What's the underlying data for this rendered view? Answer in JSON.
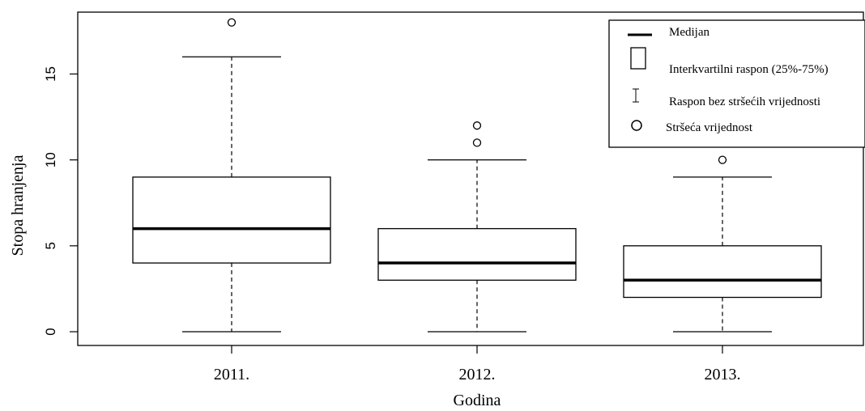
{
  "chart_data": {
    "type": "boxplot",
    "xlabel": "Godina",
    "ylabel": "Stopa hranjenja",
    "categories": [
      "2011.",
      "2012.",
      "2013."
    ],
    "ylim": [
      -0.8,
      18.6
    ],
    "yticks": [
      0,
      5,
      10,
      15
    ],
    "boxes": [
      {
        "category": "2011.",
        "whisker_low": 0,
        "q1": 4,
        "median": 6,
        "q3": 9,
        "whisker_high": 16,
        "outliers": [
          18
        ]
      },
      {
        "category": "2012.",
        "whisker_low": 0,
        "q1": 3,
        "median": 4,
        "q3": 6,
        "whisker_high": 10,
        "outliers": [
          11,
          12
        ]
      },
      {
        "category": "2013.",
        "whisker_low": 0,
        "q1": 2,
        "median": 3,
        "q3": 5,
        "whisker_high": 9,
        "outliers": [
          10
        ]
      }
    ],
    "legend": {
      "position": "top-right",
      "entries": [
        {
          "symbol": "median-line",
          "label": "Medijan"
        },
        {
          "symbol": "box",
          "label": "Interkvartilni raspon (25%-75%)"
        },
        {
          "symbol": "whisker",
          "label": "Raspon bez stršećih vrijednosti"
        },
        {
          "symbol": "outlier",
          "label": "Stršeća vrijednost"
        }
      ]
    },
    "grid": false,
    "colors": {
      "stroke": "#000000",
      "fill": "#ffffff"
    }
  }
}
